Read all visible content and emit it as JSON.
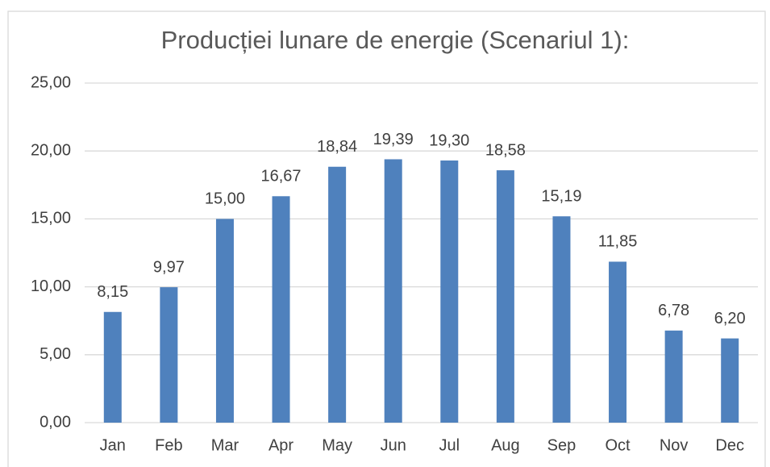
{
  "chart_data": {
    "type": "bar",
    "title": "Producției lunare de energie (Scenariul 1):",
    "categories": [
      "Jan",
      "Feb",
      "Mar",
      "Apr",
      "May",
      "Jun",
      "Jul",
      "Aug",
      "Sep",
      "Oct",
      "Nov",
      "Dec"
    ],
    "values": [
      8.15,
      9.97,
      15.0,
      16.67,
      18.84,
      19.39,
      19.3,
      18.58,
      15.19,
      11.85,
      6.78,
      6.2
    ],
    "value_labels": [
      "8,15",
      "9,97",
      "15,00",
      "16,67",
      "18,84",
      "19,39",
      "19,30",
      "18,58",
      "15,19",
      "11,85",
      "6,78",
      "6,20"
    ],
    "color": "#4f81bd",
    "ylim": [
      0,
      25
    ],
    "yticks": [
      {
        "value": 0,
        "label": "0,00"
      },
      {
        "value": 5,
        "label": "5,00"
      },
      {
        "value": 10,
        "label": "10,00"
      },
      {
        "value": 15,
        "label": "15,00"
      },
      {
        "value": 20,
        "label": "20,00"
      },
      {
        "value": 25,
        "label": "25,00"
      }
    ],
    "grid": true
  }
}
